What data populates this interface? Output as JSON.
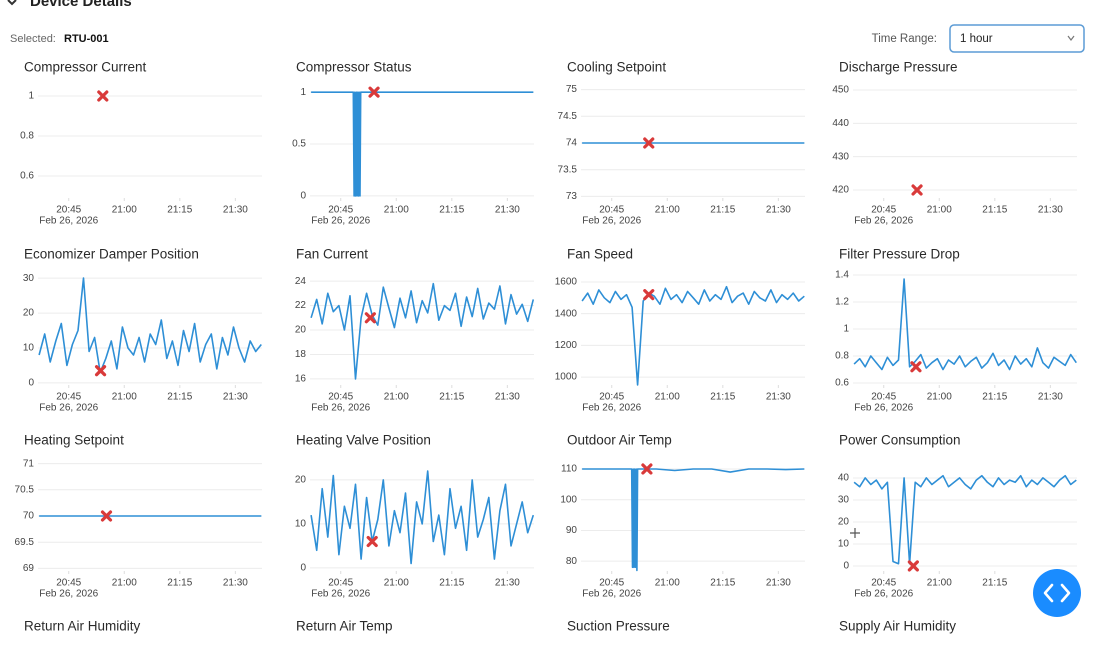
{
  "header": {
    "title": "Device Details",
    "selected_label": "Selected:",
    "selected_value": "RTU-001",
    "time_range_label": "Time Range:",
    "time_range_value": "1 hour"
  },
  "chart_data": [
    {
      "type": "line",
      "title": "Compressor Current",
      "xlim": [
        36.7,
        97.2
      ],
      "ylim": [
        0.49,
        1.04
      ],
      "yticks": [
        0.6,
        0.8,
        1
      ],
      "xticks": [
        {
          "value": 45,
          "label": "20:45"
        },
        {
          "value": 60,
          "label": "21:00"
        },
        {
          "value": 75,
          "label": "21:15"
        },
        {
          "value": 90,
          "label": "21:30"
        }
      ],
      "xtick_date": "Feb 26, 2026",
      "marker": {
        "x": 54.2,
        "y": 1,
        "color": "#d93a3a"
      }
    },
    {
      "type": "line",
      "title": "Compressor Status",
      "xlim": [
        36.7,
        97.2
      ],
      "ylim": [
        -0.02,
        1.04
      ],
      "yticks": [
        0,
        0.5,
        1
      ],
      "xticks": [
        {
          "value": 45,
          "label": "20:45"
        },
        {
          "value": 60,
          "label": "21:00"
        },
        {
          "value": 75,
          "label": "21:15"
        },
        {
          "value": 90,
          "label": "21:30"
        }
      ],
      "xtick_date": "Feb 26, 2026",
      "series": [
        {
          "color": "#2e8fd6",
          "x": [
            37,
            48.4,
            48.6,
            48.8,
            49,
            49.2,
            49.4,
            49.6,
            49.8,
            50,
            50.2,
            50.4,
            50.6,
            97
          ],
          "values": [
            1,
            1,
            0,
            1,
            0,
            1,
            0,
            1,
            0,
            1,
            0,
            1,
            1,
            1
          ]
        }
      ],
      "marker": {
        "x": 54,
        "y": 1,
        "color": "#d93a3a"
      }
    },
    {
      "type": "line",
      "title": "Cooling Setpoint",
      "xlim": [
        36.7,
        97.2
      ],
      "ylim": [
        72.97,
        75.03
      ],
      "yticks": [
        73,
        73.5,
        74,
        74.5,
        75
      ],
      "xticks": [
        {
          "value": 45,
          "label": "20:45"
        },
        {
          "value": 60,
          "label": "21:00"
        },
        {
          "value": 75,
          "label": "21:15"
        },
        {
          "value": 90,
          "label": "21:30"
        }
      ],
      "xtick_date": "Feb 26, 2026",
      "series": [
        {
          "color": "#2e8fd6",
          "x": [
            37,
            97
          ],
          "values": [
            74,
            74
          ]
        }
      ],
      "marker": {
        "x": 55,
        "y": 74,
        "color": "#d93a3a"
      }
    },
    {
      "type": "line",
      "title": "Discharge Pressure",
      "xlim": [
        36.7,
        97.2
      ],
      "ylim": [
        417.6,
        450.6
      ],
      "yticks": [
        420,
        430,
        440,
        450
      ],
      "xticks": [
        {
          "value": 45,
          "label": "20:45"
        },
        {
          "value": 60,
          "label": "21:00"
        },
        {
          "value": 75,
          "label": "21:15"
        },
        {
          "value": 90,
          "label": "21:30"
        }
      ],
      "xtick_date": "Feb 26, 2026",
      "marker": {
        "x": 54,
        "y": 420,
        "color": "#d93a3a"
      }
    },
    {
      "type": "line",
      "title": "Economizer Damper Position",
      "xlim": [
        36.7,
        97.2
      ],
      "ylim": [
        -0.6,
        30.9
      ],
      "yticks": [
        0,
        10,
        20,
        30
      ],
      "xticks": [
        {
          "value": 45,
          "label": "20:45"
        },
        {
          "value": 60,
          "label": "21:00"
        },
        {
          "value": 75,
          "label": "21:15"
        },
        {
          "value": 90,
          "label": "21:30"
        }
      ],
      "xtick_date": "Feb 26, 2026",
      "series": [
        {
          "color": "#2e8fd6",
          "x": [
            37,
            38.5,
            40,
            41.5,
            43,
            44.5,
            46,
            47.5,
            49,
            50.5,
            52,
            53.5,
            55,
            56.5,
            58,
            59.5,
            61,
            62.5,
            64,
            65.5,
            67,
            68.5,
            70,
            71.5,
            73,
            74.5,
            76,
            77.5,
            79,
            80.5,
            82,
            83.5,
            85,
            86.5,
            88,
            89.5,
            91,
            92.5,
            94,
            95.5,
            97
          ],
          "values": [
            8,
            14,
            6,
            12,
            17,
            5,
            11,
            15,
            30,
            9,
            13,
            3,
            7,
            12,
            4,
            16,
            10,
            8,
            13,
            6,
            14,
            11,
            18,
            7,
            12,
            5,
            15,
            9,
            17,
            6,
            11,
            14,
            4,
            13,
            8,
            16,
            10,
            6,
            12,
            9,
            11
          ]
        }
      ],
      "marker": {
        "x": 53.6,
        "y": 3.5,
        "color": "#d93a3a"
      }
    },
    {
      "type": "line",
      "title": "Fan Current",
      "xlim": [
        36.7,
        97.2
      ],
      "ylim": [
        15.5,
        24.5
      ],
      "yticks": [
        16,
        18,
        20,
        22,
        24
      ],
      "xticks": [
        {
          "value": 45,
          "label": "20:45"
        },
        {
          "value": 60,
          "label": "21:00"
        },
        {
          "value": 75,
          "label": "21:15"
        },
        {
          "value": 90,
          "label": "21:30"
        }
      ],
      "xtick_date": "Feb 26, 2026",
      "series": [
        {
          "color": "#2e8fd6",
          "x": [
            37,
            38.5,
            40,
            41.5,
            43,
            44.5,
            46,
            47.5,
            49,
            50.5,
            52,
            53.5,
            55,
            56.5,
            58,
            59.5,
            61,
            62.5,
            64,
            65.5,
            67,
            68.5,
            70,
            71.5,
            73,
            74.5,
            76,
            77.5,
            79,
            80.5,
            82,
            83.5,
            85,
            86.5,
            88,
            89.5,
            91,
            92.5,
            94,
            95.5,
            97
          ],
          "values": [
            21,
            22.5,
            20.5,
            23,
            21.5,
            22,
            20,
            22.8,
            16,
            21,
            23,
            21.2,
            20.4,
            23.5,
            21.8,
            20.2,
            22.6,
            21,
            23.2,
            20.6,
            22.4,
            21.4,
            23.8,
            20.8,
            22,
            21.6,
            23,
            20.3,
            22.7,
            21.1,
            23.4,
            20.9,
            22.2,
            21.7,
            23.6,
            20.5,
            22.9,
            21.3,
            22.1,
            20.7,
            22.5
          ]
        }
      ],
      "marker": {
        "x": 53,
        "y": 21,
        "color": "#d93a3a"
      }
    },
    {
      "type": "line",
      "title": "Fan Speed",
      "xlim": [
        36.7,
        97.2
      ],
      "ylim": [
        950,
        1644
      ],
      "yticks": [
        1000,
        1200,
        1400,
        1600
      ],
      "xticks": [
        {
          "value": 45,
          "label": "20:45"
        },
        {
          "value": 60,
          "label": "21:00"
        },
        {
          "value": 75,
          "label": "21:15"
        },
        {
          "value": 90,
          "label": "21:30"
        }
      ],
      "xtick_date": "Feb 26, 2026",
      "series": [
        {
          "color": "#2e8fd6",
          "x": [
            37,
            38.5,
            40,
            41.5,
            43,
            44.5,
            46,
            47.5,
            49,
            50.5,
            52,
            53.5,
            55,
            56.5,
            58,
            59.5,
            61,
            62.5,
            64,
            65.5,
            67,
            68.5,
            70,
            71.5,
            73,
            74.5,
            76,
            77.5,
            79,
            80.5,
            82,
            83.5,
            85,
            86.5,
            88,
            89.5,
            91,
            92.5,
            94,
            95.5,
            97
          ],
          "values": [
            1480,
            1530,
            1460,
            1550,
            1500,
            1470,
            1540,
            1490,
            1520,
            1440,
            950,
            1480,
            1530,
            1510,
            1460,
            1560,
            1490,
            1520,
            1470,
            1540,
            1500,
            1460,
            1550,
            1480,
            1520,
            1490,
            1570,
            1470,
            1510,
            1530,
            1460,
            1540,
            1500,
            1480,
            1550,
            1470,
            1520,
            1490,
            1530,
            1480,
            1510
          ]
        }
      ],
      "marker": {
        "x": 55,
        "y": 1520,
        "color": "#d93a3a"
      }
    },
    {
      "type": "line",
      "title": "Filter Pressure Drop",
      "xlim": [
        36.7,
        97.2
      ],
      "ylim": [
        0.585,
        1.4
      ],
      "yticks": [
        0.6,
        0.8,
        1,
        1.2,
        1.4
      ],
      "xticks": [
        {
          "value": 45,
          "label": "20:45"
        },
        {
          "value": 60,
          "label": "21:00"
        },
        {
          "value": 75,
          "label": "21:15"
        },
        {
          "value": 90,
          "label": "21:30"
        }
      ],
      "xtick_date": "Feb 26, 2026",
      "series": [
        {
          "color": "#2e8fd6",
          "x": [
            37,
            38.5,
            40,
            41.5,
            43,
            44.5,
            46,
            47.5,
            49,
            50.5,
            52,
            53.5,
            55,
            56.5,
            58,
            59.5,
            61,
            62.5,
            64,
            65.5,
            67,
            68.5,
            70,
            71.5,
            73,
            74.5,
            76,
            77.5,
            79,
            80.5,
            82,
            83.5,
            85,
            86.5,
            88,
            89.5,
            91,
            92.5,
            94,
            95.5,
            97
          ],
          "values": [
            0.74,
            0.78,
            0.72,
            0.8,
            0.75,
            0.7,
            0.79,
            0.73,
            0.77,
            1.37,
            0.72,
            0.76,
            0.81,
            0.71,
            0.75,
            0.78,
            0.7,
            0.77,
            0.74,
            0.8,
            0.72,
            0.76,
            0.79,
            0.71,
            0.75,
            0.82,
            0.73,
            0.77,
            0.7,
            0.8,
            0.74,
            0.78,
            0.72,
            0.86,
            0.75,
            0.71,
            0.79,
            0.76,
            0.73,
            0.81,
            0.75
          ]
        }
      ],
      "marker": {
        "x": 53.7,
        "y": 0.72,
        "color": "#d93a3a"
      }
    },
    {
      "type": "line",
      "title": "Heating Setpoint",
      "xlim": [
        36.7,
        97.2
      ],
      "ylim": [
        68.95,
        71.05
      ],
      "yticks": [
        69,
        69.5,
        70,
        70.5,
        71
      ],
      "xticks": [
        {
          "value": 45,
          "label": "20:45"
        },
        {
          "value": 60,
          "label": "21:00"
        },
        {
          "value": 75,
          "label": "21:15"
        },
        {
          "value": 90,
          "label": "21:30"
        }
      ],
      "xtick_date": "Feb 26, 2026",
      "series": [
        {
          "color": "#2e8fd6",
          "x": [
            37,
            97
          ],
          "values": [
            70,
            70
          ]
        }
      ],
      "marker": {
        "x": 55.2,
        "y": 70,
        "color": "#d93a3a"
      }
    },
    {
      "type": "line",
      "title": "Heating Valve Position",
      "xlim": [
        36.7,
        97.2
      ],
      "ylim": [
        -0.7,
        24.3
      ],
      "yticks": [
        0,
        10,
        20
      ],
      "xticks": [
        {
          "value": 45,
          "label": "20:45"
        },
        {
          "value": 60,
          "label": "21:00"
        },
        {
          "value": 75,
          "label": "21:15"
        },
        {
          "value": 90,
          "label": "21:30"
        }
      ],
      "xtick_date": "Feb 26, 2026",
      "series": [
        {
          "color": "#2e8fd6",
          "x": [
            37,
            38.5,
            40,
            41.5,
            43,
            44.5,
            46,
            47.5,
            49,
            50.5,
            52,
            53.5,
            55,
            56.5,
            58,
            59.5,
            61,
            62.5,
            64,
            65.5,
            67,
            68.5,
            70,
            71.5,
            73,
            74.5,
            76,
            77.5,
            79,
            80.5,
            82,
            83.5,
            85,
            86.5,
            88,
            89.5,
            91,
            92.5,
            94,
            95.5,
            97
          ],
          "values": [
            12,
            4,
            18,
            7,
            21,
            3,
            14,
            9,
            19,
            2,
            16,
            6,
            11,
            20,
            5,
            13,
            8,
            17,
            1,
            15,
            10,
            22,
            6,
            12,
            3,
            18,
            9,
            14,
            4,
            20,
            7,
            11,
            16,
            2,
            13,
            19,
            5,
            10,
            15,
            8,
            12
          ]
        }
      ],
      "marker": {
        "x": 53.5,
        "y": 6,
        "color": "#d93a3a"
      }
    },
    {
      "type": "line",
      "title": "Outdoor Air Temp",
      "xlim": [
        36.7,
        97.2
      ],
      "ylim": [
        76.8,
        112.6
      ],
      "yticks": [
        80,
        90,
        100,
        110
      ],
      "xticks": [
        {
          "value": 45,
          "label": "20:45"
        },
        {
          "value": 60,
          "label": "21:00"
        },
        {
          "value": 75,
          "label": "21:15"
        },
        {
          "value": 90,
          "label": "21:30"
        }
      ],
      "xtick_date": "Feb 26, 2026",
      "series": [
        {
          "color": "#2e8fd6",
          "x": [
            37,
            42,
            47,
            50.4,
            50.6,
            50.8,
            51,
            51.2,
            51.4,
            51.6,
            51.8,
            52,
            57,
            62,
            67,
            72,
            77,
            82,
            87,
            92,
            97
          ],
          "values": [
            110,
            110,
            110,
            110,
            78,
            110,
            78,
            110,
            78,
            110,
            77,
            110,
            110,
            109.5,
            110,
            110,
            109,
            110,
            110,
            109.8,
            110
          ]
        }
      ],
      "marker": {
        "x": 54.5,
        "y": 110,
        "color": "#d93a3a"
      }
    },
    {
      "type": "line",
      "title": "Power Consumption",
      "xlim": [
        36.7,
        97.2
      ],
      "ylim": [
        -2.3,
        47.7
      ],
      "yticks": [
        0,
        10,
        20,
        30,
        40
      ],
      "xticks": [
        {
          "value": 45,
          "label": "20:45"
        },
        {
          "value": 60,
          "label": "21:00"
        },
        {
          "value": 75,
          "label": "21:15"
        },
        {
          "value": 90,
          "label": "21:30"
        }
      ],
      "xtick_date": "Feb 26, 2026",
      "series": [
        {
          "color": "#2e8fd6",
          "x": [
            37,
            38.5,
            40,
            41.5,
            43,
            44.5,
            46,
            47.5,
            49,
            50.5,
            52,
            53.5,
            55,
            56.5,
            58,
            59.5,
            61,
            62.5,
            64,
            65.5,
            67,
            68.5,
            70,
            71.5,
            73,
            74.5,
            76,
            77.5,
            79,
            80.5,
            82,
            83.5,
            85,
            86.5,
            88,
            89.5,
            91,
            92.5,
            94,
            95.5,
            97
          ],
          "values": [
            38,
            36,
            40,
            37,
            39,
            35,
            38,
            2,
            1,
            40,
            1,
            38,
            36,
            40,
            37,
            39,
            41,
            36,
            38,
            40,
            37,
            35,
            39,
            41,
            38,
            36,
            40,
            37,
            39,
            38,
            41,
            36,
            39,
            37,
            40,
            38,
            36,
            39,
            41,
            37,
            39
          ]
        }
      ],
      "marker": {
        "x": 53,
        "y": 0,
        "color": "#d93a3a"
      }
    }
  ],
  "pending_panels": [
    {
      "title": "Return Air Humidity"
    },
    {
      "title": "Return Air Temp"
    },
    {
      "title": "Suction Pressure"
    },
    {
      "title": "Supply Air Humidity"
    }
  ]
}
